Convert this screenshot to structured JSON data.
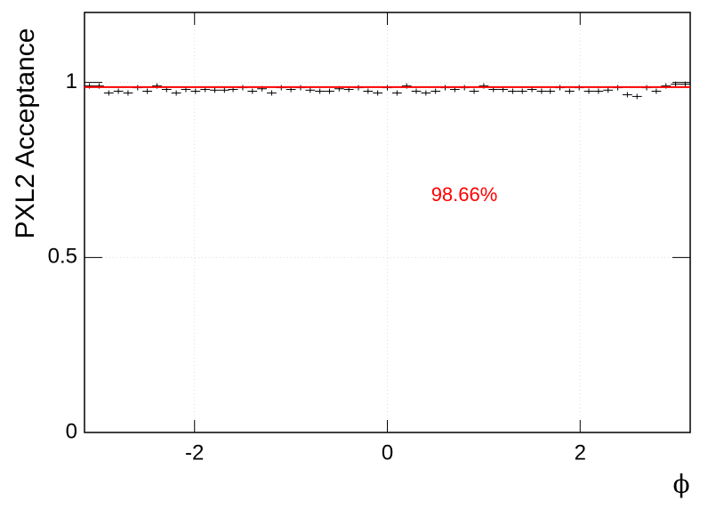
{
  "chart_data": {
    "type": "errorbar",
    "y_label": "PXL2 Acceptance",
    "x_label": "ϕ",
    "annotation": "98.66%",
    "fit": 0.9866,
    "fit_color": "#ff0000",
    "color": "#000000",
    "grid": true,
    "xlim": [
      -3.1416,
      3.1416
    ],
    "xticks": [
      -2,
      0,
      2
    ],
    "ylim": [
      0,
      1.2
    ],
    "yticks": [
      0,
      0.5,
      1
    ],
    "x": [
      -3.09,
      -2.99,
      -2.89,
      -2.79,
      -2.69,
      -2.59,
      -2.49,
      -2.39,
      -2.29,
      -2.19,
      -2.09,
      -1.99,
      -1.89,
      -1.79,
      -1.69,
      -1.6,
      -1.5,
      -1.4,
      -1.3,
      -1.2,
      -1.1,
      -1.0,
      -0.9,
      -0.8,
      -0.7,
      -0.6,
      -0.5,
      -0.4,
      -0.3,
      -0.2,
      -0.1,
      0,
      0.1,
      0.2,
      0.3,
      0.4,
      0.5,
      0.6,
      0.7,
      0.8,
      0.9,
      1.0,
      1.1,
      1.2,
      1.3,
      1.4,
      1.5,
      1.6,
      1.69,
      1.79,
      1.89,
      1.99,
      2.09,
      2.19,
      2.29,
      2.39,
      2.49,
      2.59,
      2.69,
      2.79,
      2.89,
      2.99,
      3.09
    ],
    "values": [
      0.99,
      0.99,
      0.97,
      0.975,
      0.97,
      0.985,
      0.975,
      0.99,
      0.98,
      0.97,
      0.98,
      0.975,
      0.98,
      0.978,
      0.978,
      0.98,
      0.985,
      0.975,
      0.982,
      0.97,
      0.985,
      0.98,
      0.985,
      0.978,
      0.975,
      0.975,
      0.982,
      0.98,
      0.985,
      0.975,
      0.97,
      0.985,
      0.97,
      0.99,
      0.975,
      0.97,
      0.975,
      0.985,
      0.98,
      0.985,
      0.975,
      0.99,
      0.98,
      0.98,
      0.975,
      0.975,
      0.98,
      0.975,
      0.975,
      0.985,
      0.975,
      0.985,
      0.975,
      0.975,
      0.978,
      0.985,
      0.965,
      0.96,
      0.985,
      0.975,
      0.99,
      0.995,
      0.995
    ]
  }
}
